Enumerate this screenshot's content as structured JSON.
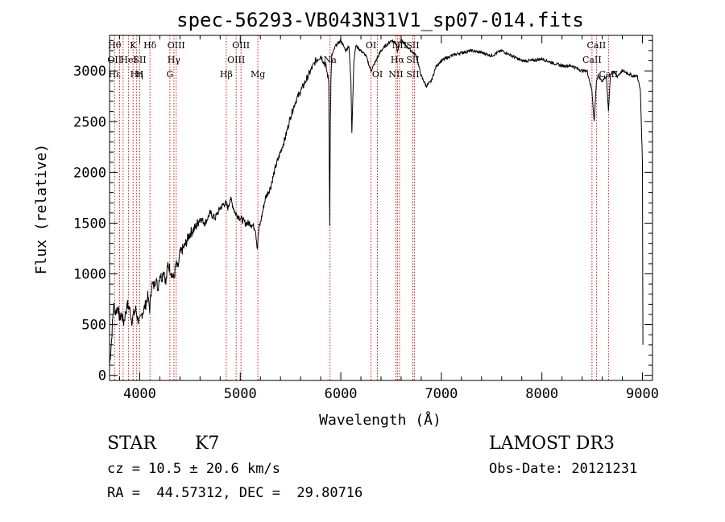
{
  "chart_data": {
    "type": "line",
    "title": "spec-56293-VB043N31V1_sp07-014.fits",
    "xlabel": "Wavelength (Å)",
    "ylabel": "Flux (relative)",
    "xlim": [
      3700,
      9100
    ],
    "ylim": [
      -50,
      3350
    ],
    "x_ticks": [
      4000,
      5000,
      6000,
      7000,
      8000,
      9000
    ],
    "y_ticks": [
      0,
      500,
      1000,
      1500,
      2000,
      2500,
      3000
    ],
    "series": [
      {
        "name": "flux",
        "x": [
          3700,
          3720,
          3740,
          3760,
          3780,
          3800,
          3820,
          3840,
          3860,
          3880,
          3900,
          3920,
          3940,
          3960,
          3980,
          4000,
          4020,
          4040,
          4060,
          4080,
          4100,
          4120,
          4140,
          4160,
          4180,
          4200,
          4220,
          4240,
          4260,
          4280,
          4300,
          4320,
          4340,
          4360,
          4380,
          4400,
          4450,
          4500,
          4550,
          4600,
          4650,
          4700,
          4750,
          4800,
          4850,
          4880,
          4900,
          4950,
          5000,
          5050,
          5100,
          5150,
          5170,
          5185,
          5200,
          5250,
          5300,
          5350,
          5400,
          5450,
          5500,
          5550,
          5600,
          5650,
          5700,
          5750,
          5800,
          5850,
          5880,
          5890,
          5896,
          5902,
          5910,
          5950,
          6000,
          6050,
          6080,
          6100,
          6110,
          6130,
          6150,
          6200,
          6250,
          6300,
          6350,
          6400,
          6450,
          6500,
          6550,
          6563,
          6600,
          6650,
          6700,
          6750,
          6800,
          6850,
          6900,
          6950,
          7000,
          7100,
          7200,
          7300,
          7400,
          7500,
          7600,
          7700,
          7800,
          7900,
          8000,
          8100,
          8200,
          8300,
          8400,
          8450,
          8498,
          8520,
          8542,
          8560,
          8600,
          8640,
          8662,
          8680,
          8700,
          8750,
          8800,
          8850,
          8900,
          8950,
          8980,
          9000,
          9005
        ],
        "y": [
          100,
          350,
          700,
          620,
          680,
          560,
          600,
          520,
          620,
          700,
          650,
          540,
          600,
          650,
          560,
          520,
          600,
          650,
          700,
          780,
          650,
          900,
          880,
          960,
          850,
          1000,
          960,
          1050,
          900,
          1100,
          1050,
          1000,
          950,
          1100,
          1050,
          1200,
          1280,
          1400,
          1450,
          1550,
          1500,
          1600,
          1550,
          1650,
          1700,
          1650,
          1750,
          1600,
          1550,
          1500,
          1500,
          1450,
          1250,
          1450,
          1500,
          1750,
          1850,
          2050,
          2200,
          2350,
          2550,
          2700,
          2800,
          2900,
          3000,
          3100,
          3150,
          3050,
          2900,
          1500,
          2500,
          2900,
          3150,
          3250,
          3300,
          3200,
          3250,
          2900,
          2400,
          3100,
          3250,
          3200,
          3150,
          3000,
          3100,
          3200,
          3250,
          3300,
          3280,
          3200,
          3300,
          3250,
          3200,
          3150,
          2950,
          2850,
          2900,
          3050,
          3100,
          3150,
          3180,
          3200,
          3180,
          3150,
          3200,
          3150,
          3100,
          3100,
          3120,
          3080,
          3050,
          3050,
          3000,
          3000,
          2800,
          2500,
          2900,
          2950,
          2900,
          2950,
          2600,
          2950,
          3000,
          2950,
          3000,
          2980,
          2950,
          2950,
          2800,
          2100,
          300
        ]
      }
    ],
    "lines": [
      {
        "wl": 3750,
        "labels": [
          "Hθ",
          "OII",
          "Hε"
        ]
      },
      {
        "wl": 3800,
        "labels": []
      },
      {
        "wl": 3835,
        "labels": []
      },
      {
        "wl": 3889,
        "labels": [
          "",
          "HeI",
          ""
        ]
      },
      {
        "wl": 3934,
        "labels": [
          "K",
          "",
          ""
        ]
      },
      {
        "wl": 3970,
        "labels": [
          "",
          "",
          "Hη"
        ]
      },
      {
        "wl": 4000,
        "labels": [
          "",
          "SII",
          "H"
        ]
      },
      {
        "wl": 4102,
        "labels": [
          "Hδ",
          "",
          ""
        ]
      },
      {
        "wl": 4300,
        "labels": [
          "",
          "",
          "G"
        ]
      },
      {
        "wl": 4340,
        "labels": [
          "",
          "Hγ",
          ""
        ]
      },
      {
        "wl": 4363,
        "labels": [
          "OIII",
          "",
          ""
        ]
      },
      {
        "wl": 4861,
        "labels": [
          "",
          "",
          "Hβ"
        ]
      },
      {
        "wl": 4959,
        "labels": [
          "",
          "OIII",
          ""
        ]
      },
      {
        "wl": 5007,
        "labels": [
          "OIII",
          "",
          ""
        ]
      },
      {
        "wl": 5175,
        "labels": [
          "",
          "",
          "Mg"
        ]
      },
      {
        "wl": 5893,
        "labels": [
          "",
          "Na",
          ""
        ]
      },
      {
        "wl": 6300,
        "labels": [
          "OI",
          "",
          ""
        ]
      },
      {
        "wl": 6364,
        "labels": [
          "",
          "",
          "OI"
        ]
      },
      {
        "wl": 6548,
        "labels": [
          "",
          "",
          "NII"
        ]
      },
      {
        "wl": 6563,
        "labels": [
          "",
          "Hα",
          ""
        ]
      },
      {
        "wl": 6584,
        "labels": [
          "NII",
          "",
          ""
        ]
      },
      {
        "wl": 6716,
        "labels": [
          "SII",
          "SII",
          "SII"
        ]
      },
      {
        "wl": 6731,
        "labels": []
      },
      {
        "wl": 8498,
        "labels": [
          "",
          "CaII",
          ""
        ]
      },
      {
        "wl": 8542,
        "labels": [
          "CaII",
          "",
          ""
        ]
      },
      {
        "wl": 8662,
        "labels": [
          "",
          "",
          "CaII"
        ]
      }
    ]
  },
  "footer": {
    "object_class": "STAR",
    "subclass": "K7",
    "survey": "LAMOST DR3",
    "cz": "cz = 10.5 ± 20.6 km/s",
    "obs_date": "Obs-Date: 20121231",
    "coords": "RA =  44.57312, DEC =  29.80716"
  }
}
